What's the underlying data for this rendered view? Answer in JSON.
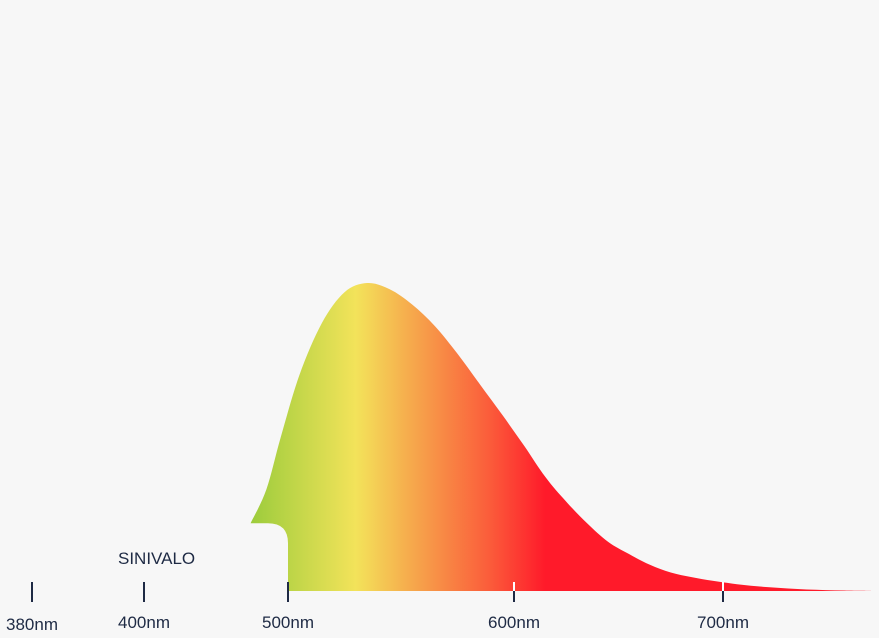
{
  "chart_data": {
    "type": "area",
    "title": "",
    "xlabel": "",
    "ylabel": "",
    "annotation": "SINIVALO",
    "x_ticks": [
      {
        "value": 380,
        "label": "380nm"
      },
      {
        "value": 400,
        "label": "400nm"
      },
      {
        "value": 500,
        "label": "500nm"
      },
      {
        "value": 600,
        "label": "600nm"
      },
      {
        "value": 700,
        "label": "700nm"
      }
    ],
    "curve": {
      "x": [
        474,
        485,
        495,
        505,
        515,
        525,
        535,
        545,
        555,
        565,
        575,
        585,
        595,
        605,
        615,
        625,
        635,
        645,
        655,
        665,
        675,
        685,
        695,
        705,
        715,
        725,
        735,
        745,
        755,
        765,
        775,
        780
      ],
      "y": [
        0.22,
        0.33,
        0.5,
        0.7,
        0.87,
        0.97,
        1.0,
        0.98,
        0.93,
        0.86,
        0.77,
        0.67,
        0.57,
        0.47,
        0.37,
        0.29,
        0.22,
        0.16,
        0.12,
        0.085,
        0.06,
        0.045,
        0.033,
        0.024,
        0.017,
        0.012,
        0.008,
        0.005,
        0.003,
        0.0015,
        0.0005,
        0.0
      ]
    },
    "blue_light_cutoff": 500,
    "gradient_colors": [
      {
        "wavelength": 474,
        "color": "#9ccc3c"
      },
      {
        "wavelength": 530,
        "color": "#f3e35a"
      },
      {
        "wavelength": 555,
        "color": "#f6a84c"
      },
      {
        "wavelength": 590,
        "color": "#fb5a3a"
      },
      {
        "wavelength": 615,
        "color": "#ff1a2a"
      },
      {
        "wavelength": 780,
        "color": "#ff1a2a"
      }
    ],
    "colors": {
      "text": "#1e2a44",
      "background": "#f7f7f7"
    }
  }
}
